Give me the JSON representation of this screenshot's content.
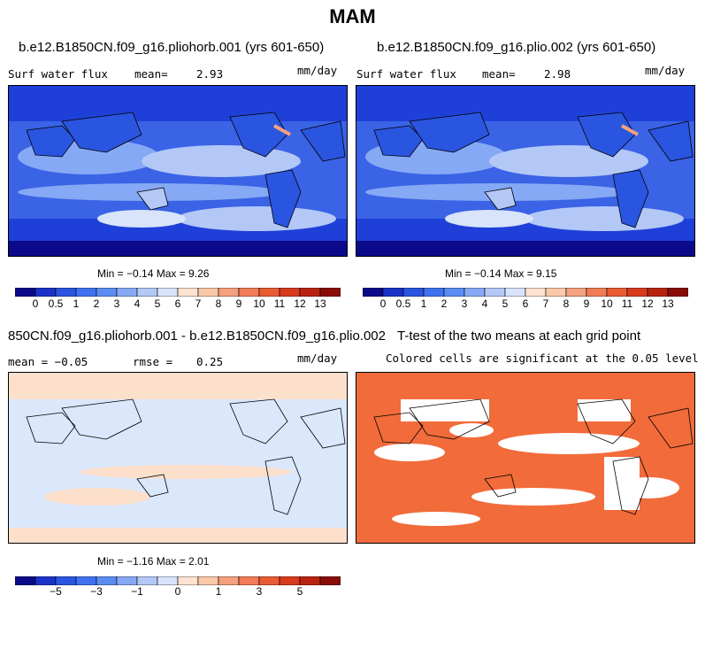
{
  "figure": {
    "title": "MAM"
  },
  "panels": [
    {
      "id": "p1",
      "title": "b.e12.B1850CN.f09_g16.pliohorb.001 (yrs 601-650)",
      "left_label": "Surf water flux",
      "stat_label": "mean=",
      "stat_value": "2.93",
      "units": "mm/day",
      "min_max": "Min =  −0.14 Max =    9.26"
    },
    {
      "id": "p2",
      "title": "b.e12.B1850CN.f09_g16.plio.002 (yrs 601-650)",
      "left_label": "Surf water flux",
      "stat_label": "mean=",
      "stat_value": "2.98",
      "units": "mm/day",
      "min_max": "Min =  −0.14 Max =    9.15"
    },
    {
      "id": "p3",
      "title": "850CN.f09_g16.pliohorb.001 - b.e12.B1850CN.f09_g16.plio.002",
      "left_label": "mean =  −0.05",
      "stat_label": "rmse =",
      "stat_value": "0.25",
      "units": "mm/day",
      "min_max": "Min =  −1.16 Max =    2.01"
    },
    {
      "id": "p4",
      "title": "T-test of the two means at each grid point",
      "left_label": "Colored cells are significant at the 0.05 level"
    }
  ],
  "chart_data": [
    {
      "type": "heatmap",
      "title": "b.e12.B1850CN.f09_g16.pliohorb.001 (yrs 601-650)",
      "variable": "Surf water flux",
      "units": "mm/day",
      "mean": 2.93,
      "min": -0.14,
      "max": 9.26,
      "colorbar_levels": [
        0,
        0.5,
        1,
        2,
        3,
        4,
        5,
        6,
        7,
        8,
        9,
        10,
        11,
        12,
        13
      ]
    },
    {
      "type": "heatmap",
      "title": "b.e12.B1850CN.f09_g16.plio.002 (yrs 601-650)",
      "variable": "Surf water flux",
      "units": "mm/day",
      "mean": 2.98,
      "min": -0.14,
      "max": 9.15,
      "colorbar_levels": [
        0,
        0.5,
        1,
        2,
        3,
        4,
        5,
        6,
        7,
        8,
        9,
        10,
        11,
        12,
        13
      ]
    },
    {
      "type": "heatmap",
      "title": "850CN.f09_g16.pliohorb.001 - b.e12.B1850CN.f09_g16.plio.002",
      "units": "mm/day",
      "mean": -0.05,
      "rmse": 0.25,
      "min": -1.16,
      "max": 2.01,
      "colorbar_labels": [
        -5,
        -3,
        -1,
        0,
        1,
        3,
        5
      ]
    },
    {
      "type": "heatmap",
      "title": "T-test of the two means at each grid point",
      "significance_level": 0.05,
      "colors": {
        "significant": "#f26b3a",
        "not_significant": "#ffffff"
      }
    }
  ],
  "colorbar": {
    "colors": [
      "#0a0a8a",
      "#1a32c8",
      "#2a55e0",
      "#3f72ee",
      "#5b8cf2",
      "#86a9f5",
      "#b3c8f7",
      "#d8e4fa",
      "#fde3d0",
      "#fbc8a8",
      "#f5a07e",
      "#f17c56",
      "#ea5a33",
      "#d83a1c",
      "#b8230f",
      "#8a0c06"
    ],
    "tick_labels_abs": [
      "0",
      "0.5",
      "1",
      "2",
      "3",
      "4",
      "5",
      "6",
      "7",
      "8",
      "9",
      "10",
      "11",
      "12",
      "13"
    ],
    "tick_labels_diff": [
      "−5",
      "−3",
      "−1",
      "0",
      "1",
      "3",
      "5"
    ]
  },
  "style": {
    "ocean_deep": "#1f40d8",
    "ocean_mid": "#3a63e6",
    "tropics_light": "#c7d7f7",
    "diff_base": "#dbe7fb",
    "diff_warm": "#fde0cc",
    "sig_orange": "#f26b3a"
  }
}
